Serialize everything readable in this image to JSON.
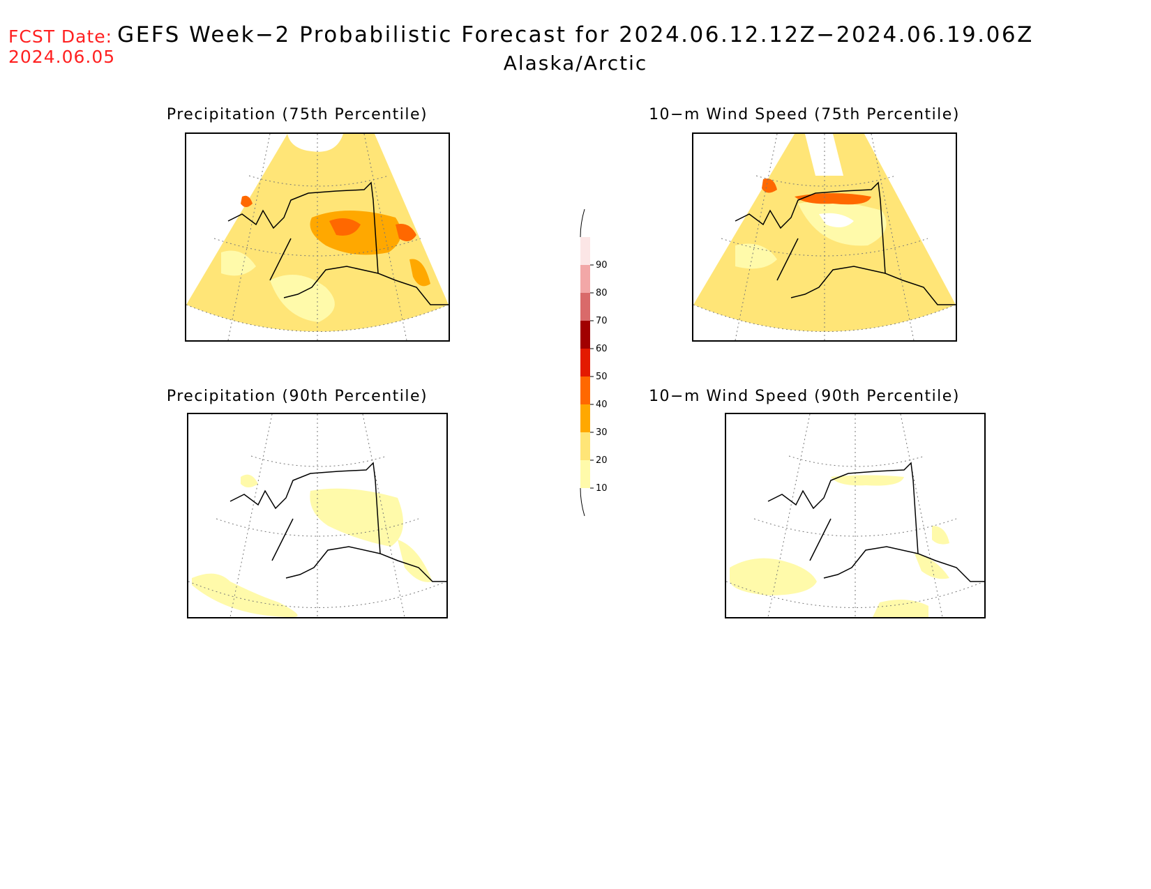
{
  "fcst_date": {
    "label": "FCST Date:",
    "value": "2024.06.05"
  },
  "title": {
    "line1": "GEFS Week−2 Probabilistic Forecast for 2024.06.12.12Z−2024.06.19.06Z",
    "line2": "Alaska/Arctic"
  },
  "panels": [
    {
      "id": "precip75",
      "title": "Precipitation (75th Percentile)"
    },
    {
      "id": "wind75",
      "title": "10−m Wind Speed (75th Percentile)"
    },
    {
      "id": "precip90",
      "title": "Precipitation (90th Percentile)"
    },
    {
      "id": "wind90",
      "title": "10−m Wind Speed (90th Percentile)"
    }
  ],
  "colorbar": {
    "levels": [
      "10",
      "20",
      "30",
      "40",
      "50",
      "60",
      "70",
      "80",
      "90"
    ],
    "colors": [
      "#fffaaa",
      "#ffe577",
      "#ffa800",
      "#ff6800",
      "#e31a00",
      "#a10000",
      "#d96a6a",
      "#f2a7a7",
      "#fce6e6"
    ]
  }
}
